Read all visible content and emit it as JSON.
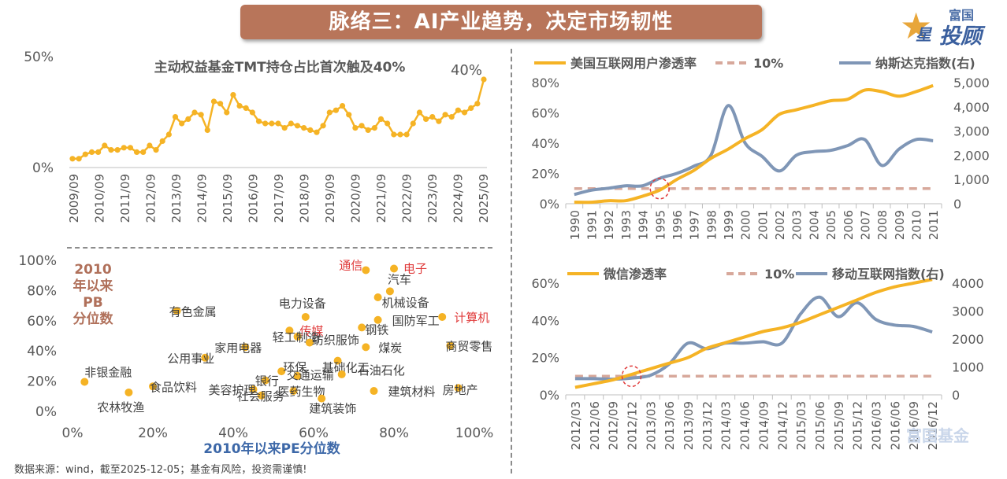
{
  "header": {
    "title": "脉络三：AI产业趋势，决定市场韧性"
  },
  "logo": {
    "top_text": "富国",
    "main_text": "投顾",
    "star_text": "星"
  },
  "watermark": "富国基金",
  "source_note": "数据来源：wind，截至2025-12-05；基金有风险，投资需谨慎!",
  "colors": {
    "gold": "#F5B325",
    "blue": "#7F96B6",
    "dash": "#D7A89B",
    "pb_title": "#B0705A",
    "pe_title": "#3D68A8",
    "highlight": "#E03B3B"
  },
  "chart_data": [
    {
      "id": "tmt",
      "type": "line",
      "title": "主动权益基金TMT持仓占比首次触及40%",
      "yticks": [
        "50%",
        "0%"
      ],
      "ylim": [
        0,
        50
      ],
      "end_label": "40%",
      "xticks": [
        "2009/09",
        "2010/09",
        "2011/09",
        "2012/09",
        "2013/09",
        "2014/09",
        "2015/09",
        "2016/09",
        "2017/09",
        "2018/09",
        "2019/09",
        "2020/09",
        "2021/09",
        "2022/09",
        "2023/09",
        "2024/09",
        "2025/09"
      ],
      "values": [
        4,
        4,
        6,
        7,
        7,
        10,
        8,
        8,
        9,
        9,
        7,
        7,
        10,
        8,
        12,
        15,
        23,
        20,
        22,
        25,
        24,
        17,
        30,
        29,
        25,
        33,
        28,
        27,
        25,
        21,
        20,
        20,
        20,
        18,
        20,
        19,
        18,
        17,
        16,
        19,
        25,
        26,
        28,
        24,
        18,
        19,
        17,
        18,
        22,
        20,
        15,
        15,
        15,
        20,
        25,
        22,
        23,
        21,
        24,
        23,
        26,
        25,
        27,
        29,
        40
      ]
    },
    {
      "id": "scatter",
      "type": "scatter",
      "xlabel": "2010年以来PE分位数",
      "ylabel": "2010年以来PB分位数",
      "xticks": [
        "0%",
        "20%",
        "40%",
        "60%",
        "80%",
        "100%"
      ],
      "yticks": [
        "100%",
        "80%",
        "60%",
        "40%",
        "20%",
        "0%"
      ],
      "xlim": [
        0,
        100
      ],
      "ylim": [
        0,
        100
      ],
      "points": [
        {
          "name": "电子",
          "x": 80,
          "y": 94,
          "highlight": true
        },
        {
          "name": "通信",
          "x": 73,
          "y": 93,
          "highlight": true
        },
        {
          "name": "汽车",
          "x": 79,
          "y": 79,
          "highlight": false
        },
        {
          "name": "机械设备",
          "x": 76,
          "y": 75,
          "highlight": false
        },
        {
          "name": "计算机",
          "x": 92,
          "y": 62,
          "highlight": true
        },
        {
          "name": "国防军工",
          "x": 76,
          "y": 60,
          "highlight": false
        },
        {
          "name": "有色金属",
          "x": 26,
          "y": 66,
          "highlight": false
        },
        {
          "name": "电力设备",
          "x": 58,
          "y": 62,
          "highlight": false
        },
        {
          "name": "传媒",
          "x": 54,
          "y": 53,
          "highlight": true
        },
        {
          "name": "轻工制造",
          "x": 56,
          "y": 49,
          "highlight": false
        },
        {
          "name": "钢铁",
          "x": 72,
          "y": 55,
          "highlight": false
        },
        {
          "name": "纺织服饰",
          "x": 59,
          "y": 45,
          "highlight": false
        },
        {
          "name": "煤炭",
          "x": 73,
          "y": 42,
          "highlight": false
        },
        {
          "name": "商贸零售",
          "x": 94,
          "y": 43,
          "highlight": false
        },
        {
          "name": "家用电器",
          "x": 43,
          "y": 42,
          "highlight": false
        },
        {
          "name": "公用事业",
          "x": 33,
          "y": 35,
          "highlight": false
        },
        {
          "name": "基础化工",
          "x": 66,
          "y": 33,
          "highlight": false
        },
        {
          "name": "环保",
          "x": 52,
          "y": 26,
          "highlight": false
        },
        {
          "name": "交通运输",
          "x": 56,
          "y": 23,
          "highlight": false
        },
        {
          "name": "石油石化",
          "x": 67,
          "y": 24,
          "highlight": false
        },
        {
          "name": "银行",
          "x": 48,
          "y": 20,
          "highlight": false
        },
        {
          "name": "非银金融",
          "x": 3,
          "y": 19,
          "highlight": false
        },
        {
          "name": "食品饮料",
          "x": 20,
          "y": 16,
          "highlight": false
        },
        {
          "name": "美容护理",
          "x": 45,
          "y": 14,
          "highlight": false
        },
        {
          "name": "医药生物",
          "x": 55,
          "y": 13,
          "highlight": false
        },
        {
          "name": "建筑材料",
          "x": 75,
          "y": 13,
          "highlight": false
        },
        {
          "name": "房地产",
          "x": 96,
          "y": 15,
          "highlight": false
        },
        {
          "name": "农林牧渔",
          "x": 14,
          "y": 12,
          "highlight": false
        },
        {
          "name": "社会服务",
          "x": 47,
          "y": 10,
          "highlight": false
        },
        {
          "name": "建筑装饰",
          "x": 62,
          "y": 8,
          "highlight": false
        }
      ]
    },
    {
      "id": "us_internet",
      "type": "line",
      "legend": [
        "美国互联网用户渗透率",
        "10%",
        "纳斯达克指数(右)"
      ],
      "yticks_left": [
        "80%",
        "60%",
        "40%",
        "20%",
        "0%"
      ],
      "yticks_right": [
        "5,000",
        "4,000",
        "3,000",
        "2,000",
        "1,000",
        "0"
      ],
      "ylim_left": [
        0,
        80
      ],
      "ylim_right": [
        0,
        5000
      ],
      "x": [
        "1990",
        "1991",
        "1992",
        "1993",
        "1994",
        "1995",
        "1996",
        "1997",
        "1998",
        "1999",
        "2000",
        "2001",
        "2002",
        "2003",
        "2004",
        "2005",
        "2006",
        "2007",
        "2008",
        "2009",
        "2010",
        "2011"
      ],
      "series": [
        {
          "name": "美国互联网用户渗透率",
          "axis": "left",
          "values": [
            1,
            1,
            2,
            2,
            5,
            9,
            16,
            22,
            30,
            36,
            43,
            49,
            59,
            62,
            65,
            68,
            69,
            75,
            74,
            71,
            74,
            78
          ]
        },
        {
          "name": "10%",
          "axis": "left",
          "values": [
            10,
            10,
            10,
            10,
            10,
            10,
            10,
            10,
            10,
            10,
            10,
            10,
            10,
            10,
            10,
            10,
            10,
            10,
            10,
            10,
            10,
            10
          ]
        },
        {
          "name": "纳斯达克指数(右)",
          "axis": "right",
          "values": [
            380,
            560,
            640,
            740,
            740,
            1050,
            1250,
            1550,
            2000,
            4050,
            2500,
            1950,
            1350,
            2000,
            2150,
            2200,
            2400,
            2650,
            1580,
            2250,
            2650,
            2600
          ]
        }
      ]
    },
    {
      "id": "wechat",
      "type": "line",
      "legend": [
        "微信渗透率",
        "10%",
        "移动互联网指数(右)"
      ],
      "yticks_left": [
        "60%",
        "40%",
        "20%",
        "0%"
      ],
      "yticks_right": [
        "4000",
        "3000",
        "2000",
        "1000",
        "0"
      ],
      "ylim_left": [
        0,
        60
      ],
      "ylim_right": [
        0,
        4000
      ],
      "x": [
        "2012/03",
        "2012/06",
        "2012/09",
        "2012/12",
        "2013/03",
        "2013/06",
        "2013/09",
        "2013/12",
        "2014/03",
        "2014/06",
        "2014/09",
        "2014/12",
        "2015/03",
        "2015/06",
        "2015/09",
        "2015/12",
        "2016/03",
        "2016/06",
        "2016/09",
        "2016/12"
      ],
      "series": [
        {
          "name": "微信渗透率",
          "axis": "left",
          "values": [
            4,
            6,
            8,
            11,
            14,
            17,
            20,
            25,
            28,
            31,
            34,
            36,
            39,
            43,
            47,
            51,
            55,
            58,
            60,
            62
          ]
        },
        {
          "name": "10%",
          "axis": "left",
          "values": [
            10,
            10,
            10,
            10,
            10,
            10,
            10,
            10,
            10,
            10,
            10,
            10,
            10,
            10,
            10,
            10,
            10,
            10,
            10,
            10
          ]
        },
        {
          "name": "移动互联网指数(右)",
          "axis": "right",
          "values": [
            580,
            580,
            560,
            600,
            700,
            1100,
            1850,
            1650,
            1850,
            1850,
            1900,
            1850,
            2900,
            3500,
            2800,
            3300,
            2700,
            2500,
            2450,
            2250
          ]
        }
      ]
    }
  ]
}
